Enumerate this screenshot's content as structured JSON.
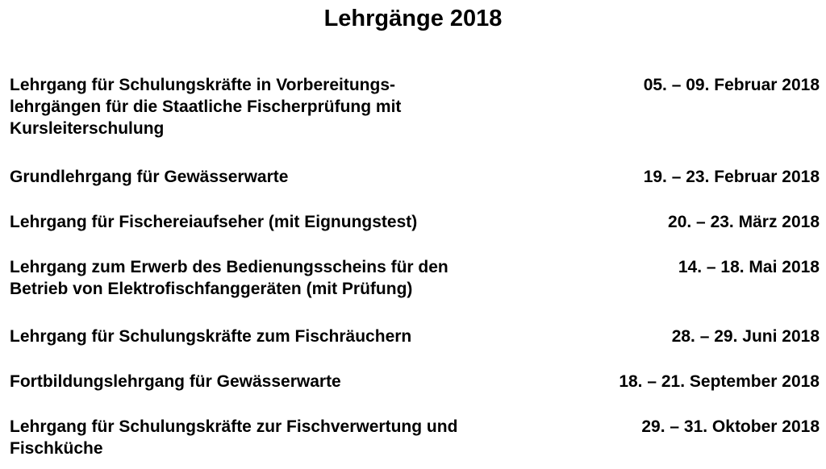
{
  "title": "Lehrgänge 2018",
  "courses": [
    {
      "lines": [
        "Lehrgang für Schulungskräfte in Vorbereitungs-",
        "lehrgängen für die Staatliche Fischerprüfung mit",
        "Kursleiterschulung"
      ],
      "date": "05. – 09. Februar 2018"
    },
    {
      "lines": [
        "Grundlehrgang für Gewässerwarte"
      ],
      "date": "19. – 23. Februar 2018"
    },
    {
      "lines": [
        "Lehrgang für Fischereiaufseher (mit Eignungstest)"
      ],
      "date": "20. – 23. März 2018"
    },
    {
      "lines": [
        "Lehrgang zum Erwerb des Bedienungsscheins für den",
        "Betrieb von Elektrofischfanggeräten (mit Prüfung)"
      ],
      "date": "14. – 18. Mai 2018"
    },
    {
      "lines": [
        "Lehrgang für Schulungskräfte zum Fischräuchern"
      ],
      "date": "28. – 29. Juni 2018"
    },
    {
      "lines": [
        "Fortbildungslehrgang für Gewässerwarte"
      ],
      "date": "18. – 21. September 2018"
    },
    {
      "lines": [
        "Lehrgang für Schulungskräfte zur Fischverwertung und",
        "Fischküche"
      ],
      "date": "29. – 31. Oktober 2018"
    }
  ]
}
